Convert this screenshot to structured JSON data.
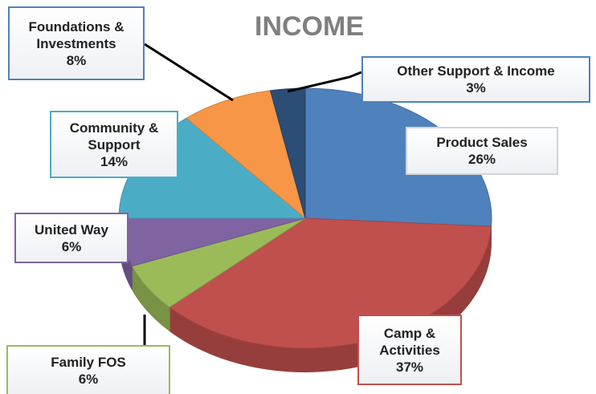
{
  "chart_data": {
    "type": "pie",
    "title": "INCOME",
    "categories": [
      "Product Sales",
      "Camp & Activities",
      "Family FOS",
      "United Way",
      "Community & Support",
      "Foundations & Investments",
      "Other Support & Income"
    ],
    "values": [
      26,
      37,
      6,
      6,
      14,
      8,
      3
    ],
    "value_labels": [
      "26%",
      "37%",
      "6%",
      "6%",
      "14%",
      "8%",
      "3%"
    ],
    "colors": [
      "#4f81bd",
      "#c0504d",
      "#9bbb59",
      "#8064a2",
      "#4bacc6",
      "#f79646",
      "#2c4d75"
    ]
  }
}
